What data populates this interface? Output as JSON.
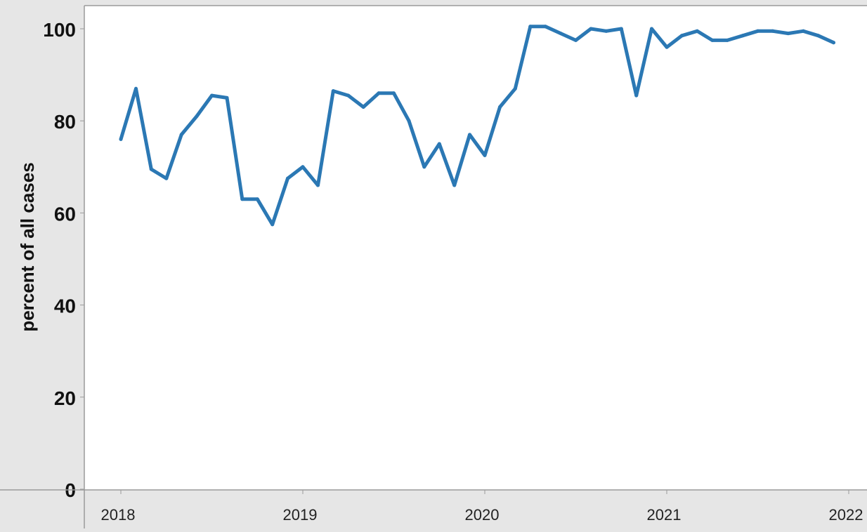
{
  "chart_data": {
    "type": "line",
    "title": "",
    "xlabel": "",
    "ylabel": "percent of all cases",
    "ylim": [
      0,
      104
    ],
    "xlim": [
      2018,
      2022
    ],
    "yticks": [
      0,
      20,
      40,
      60,
      80,
      100
    ],
    "xticks": [
      "2018",
      "2019",
      "2020",
      "2021",
      "2022"
    ],
    "grid": false,
    "legend": "none",
    "color": "#2b78b4",
    "series": [
      {
        "x": [
          2018.0,
          2018.083,
          2018.167,
          2018.25,
          2018.333,
          2018.417,
          2018.5,
          2018.583,
          2018.667,
          2018.75,
          2018.833,
          2018.917,
          2019.0,
          2019.083,
          2019.167,
          2019.25,
          2019.333,
          2019.417,
          2019.5,
          2019.583,
          2019.667,
          2019.75,
          2019.833,
          2019.917,
          2020.0,
          2020.083,
          2020.167,
          2020.25,
          2020.333,
          2020.417,
          2020.5,
          2020.583,
          2020.667,
          2020.75,
          2020.833,
          2020.917,
          2021.0,
          2021.083,
          2021.167,
          2021.25,
          2021.333,
          2021.417,
          2021.5,
          2021.583,
          2021.667,
          2021.75,
          2021.833,
          2021.917
        ],
        "values": [
          76,
          87,
          69.5,
          67.5,
          77,
          81,
          85.5,
          85,
          63,
          63,
          57.5,
          67.5,
          70,
          66,
          86.5,
          85.5,
          83,
          86,
          86,
          80,
          70,
          75,
          66,
          77,
          72.5,
          83,
          87,
          100.5,
          100.5,
          99,
          97.5,
          100,
          99.5,
          100,
          85.5,
          100,
          96,
          98.5,
          99.5,
          97.5,
          97.5,
          98.5,
          99.5,
          99.5,
          99,
          99.5,
          98.5,
          97
        ]
      }
    ]
  }
}
